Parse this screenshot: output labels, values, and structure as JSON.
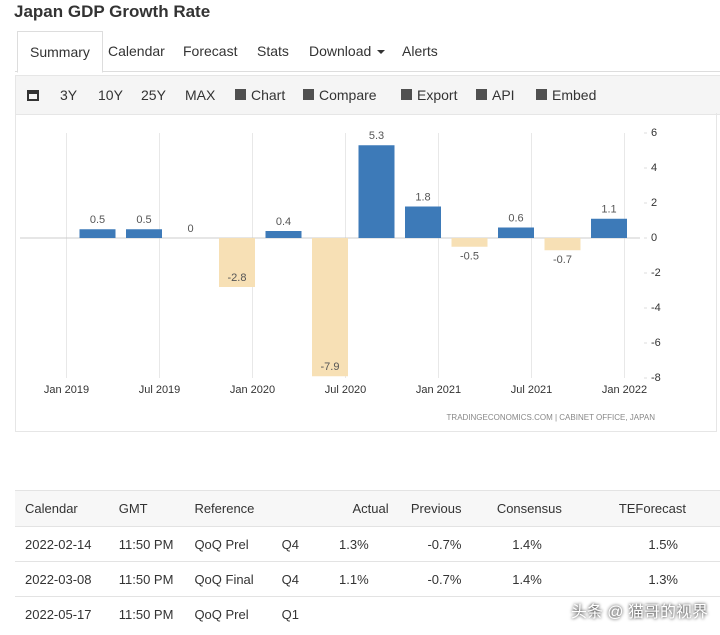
{
  "header": {
    "title": "Japan GDP Growth Rate"
  },
  "tabs": [
    "Summary",
    "Calendar",
    "Forecast",
    "Stats",
    "Download",
    "Alerts"
  ],
  "toolbar": [
    "3Y",
    "10Y",
    "25Y",
    "MAX",
    "Chart",
    "Compare",
    "Export",
    "API",
    "Embed"
  ],
  "chart_data": {
    "type": "bar",
    "x": [
      "2019-03",
      "2019-06",
      "2019-09",
      "2019-12",
      "2020-03",
      "2020-06",
      "2020-09",
      "2020-12",
      "2021-03",
      "2021-06",
      "2021-09",
      "2021-12"
    ],
    "values": [
      0.5,
      0.5,
      0,
      -2.8,
      0.4,
      -7.9,
      5.3,
      1.8,
      -0.5,
      0.6,
      -0.7,
      1.1
    ],
    "positive_color": "#3d7ab8",
    "negative_color": "#f7e0b5",
    "xlim": [
      "2018-10",
      "2022-02"
    ],
    "xticks": [
      {
        "value": "2019-01",
        "label": "Jan 2019"
      },
      {
        "value": "2019-07",
        "label": "Jul 2019"
      },
      {
        "value": "2020-01",
        "label": "Jan 2020"
      },
      {
        "value": "2020-07",
        "label": "Jul 2020"
      },
      {
        "value": "2021-01",
        "label": "Jan 2021"
      },
      {
        "value": "2021-07",
        "label": "Jul 2021"
      },
      {
        "value": "2022-01",
        "label": "Jan 2022"
      }
    ],
    "ylim": [
      -8,
      6
    ],
    "yticks": [
      -8,
      -6,
      -4,
      -2,
      0,
      2,
      4,
      6
    ],
    "grid": true,
    "source": "TRADINGECONOMICS.COM | CABINET OFFICE, JAPAN"
  },
  "table": {
    "columns": [
      "Calendar",
      "GMT",
      "Reference",
      "",
      "Actual",
      "Previous",
      "Consensus",
      "TEForecast"
    ],
    "rows": [
      [
        "2022-02-14",
        "11:50 PM",
        "QoQ Prel",
        "Q4",
        "1.3%",
        "-0.7%",
        "1.4%",
        "1.5%"
      ],
      [
        "2022-03-08",
        "11:50 PM",
        "QoQ Final",
        "Q4",
        "1.1%",
        "-0.7%",
        "1.4%",
        "1.3%"
      ],
      [
        "2022-05-17",
        "11:50 PM",
        "QoQ Prel",
        "Q1"
      ]
    ]
  },
  "watermark": "头条 @ 猫哥的视界"
}
